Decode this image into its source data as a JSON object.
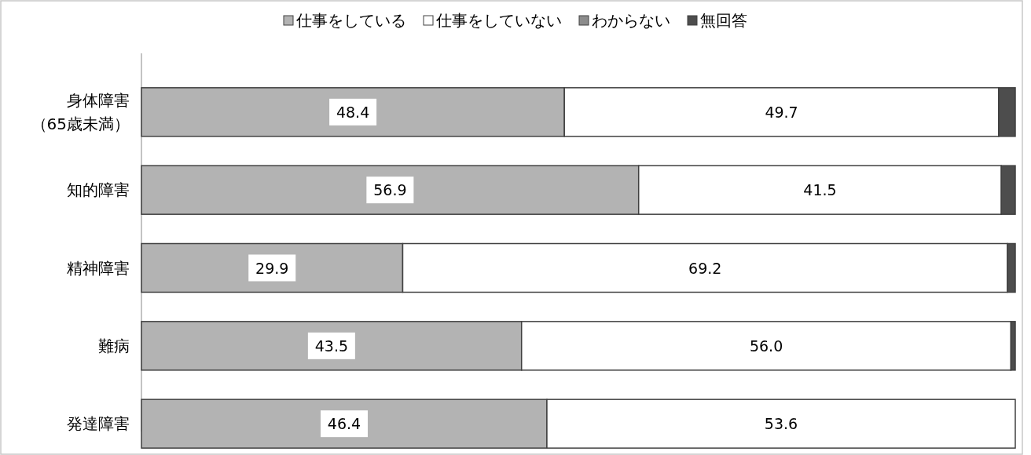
{
  "chart_data": {
    "type": "bar",
    "orientation": "horizontal",
    "stacked": true,
    "legend": "top",
    "categories": [
      "身体障害（65歳未満）",
      "知的障害",
      "精神障害",
      "難病",
      "発達障害"
    ],
    "series": [
      {
        "name": "仕事をしている",
        "color": "#b3b3b3",
        "values": [
          48.4,
          56.9,
          29.9,
          43.5,
          46.4
        ],
        "value_labels": [
          "48.4",
          "56.9",
          "29.9",
          "43.5",
          "46.4"
        ]
      },
      {
        "name": "仕事をしていない",
        "color": "#ffffff",
        "values": [
          49.7,
          41.5,
          69.2,
          56.0,
          53.6
        ],
        "value_labels": [
          "49.7",
          "41.5",
          "69.2",
          "56.0",
          "53.6"
        ]
      },
      {
        "name": "わからない",
        "color": "#8c8c8c",
        "values": [
          0,
          0,
          0,
          0,
          0
        ]
      },
      {
        "name": "無回答",
        "color": "#4d4d4d",
        "values": [
          1.9,
          1.6,
          0.9,
          0.5,
          0
        ]
      }
    ],
    "xlim": [
      0,
      100
    ],
    "tick_labels": "y"
  }
}
